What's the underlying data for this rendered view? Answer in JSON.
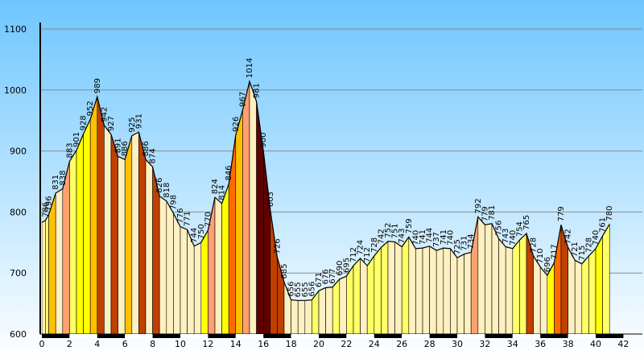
{
  "chart_data": {
    "type": "area",
    "title": "",
    "xlabel": "",
    "ylabel": "",
    "xlim": [
      0,
      43
    ],
    "ylim": [
      600,
      1100
    ],
    "x_ticks": [
      0,
      2,
      4,
      6,
      8,
      10,
      12,
      14,
      16,
      18,
      20,
      22,
      24,
      26,
      28,
      30,
      32,
      34,
      36,
      38,
      40,
      42
    ],
    "y_ticks": [
      600,
      700,
      800,
      900,
      1000,
      1100
    ],
    "grid": "horizontal",
    "colors": {
      "background_top": "#6ec6ff",
      "background_bottom": "#ffffff",
      "grid": "#8a8a8a",
      "outline": "#000000",
      "band_dark": "#000000",
      "band_light": "#ffffff",
      "gentle": "#fff0c0",
      "moderate": "#ffff66",
      "steep": "#ffff00",
      "steeper": "#ffc000",
      "very_steep": "#ffa070",
      "extreme": "#ff6a00",
      "descent": "#c04000",
      "descent_steep": "#600000"
    },
    "points": [
      {
        "x": 0.0,
        "y": 783
      },
      {
        "x": 0.25,
        "y": 786
      },
      {
        "x": 0.5,
        "y": 796
      },
      {
        "x": 1.0,
        "y": 831
      },
      {
        "x": 1.5,
        "y": 838
      },
      {
        "x": 2.0,
        "y": 883
      },
      {
        "x": 2.5,
        "y": 901
      },
      {
        "x": 3.0,
        "y": 928
      },
      {
        "x": 3.5,
        "y": 952
      },
      {
        "x": 4.0,
        "y": 989
      },
      {
        "x": 4.5,
        "y": 942
      },
      {
        "x": 5.0,
        "y": 927
      },
      {
        "x": 5.5,
        "y": 891
      },
      {
        "x": 6.0,
        "y": 886
      },
      {
        "x": 6.5,
        "y": 925
      },
      {
        "x": 7.0,
        "y": 931
      },
      {
        "x": 7.5,
        "y": 886
      },
      {
        "x": 8.0,
        "y": 874
      },
      {
        "x": 8.5,
        "y": 826
      },
      {
        "x": 9.0,
        "y": 818
      },
      {
        "x": 9.5,
        "y": 798
      },
      {
        "x": 10.0,
        "y": 776
      },
      {
        "x": 10.5,
        "y": 771
      },
      {
        "x": 11.0,
        "y": 744
      },
      {
        "x": 11.5,
        "y": 750
      },
      {
        "x": 12.0,
        "y": 770
      },
      {
        "x": 12.5,
        "y": 824
      },
      {
        "x": 13.0,
        "y": 814
      },
      {
        "x": 13.5,
        "y": 846
      },
      {
        "x": 14.0,
        "y": 926
      },
      {
        "x": 14.5,
        "y": 967
      },
      {
        "x": 15.0,
        "y": 1014
      },
      {
        "x": 15.5,
        "y": 981
      },
      {
        "x": 16.0,
        "y": 900
      },
      {
        "x": 16.5,
        "y": 803
      },
      {
        "x": 17.0,
        "y": 726
      },
      {
        "x": 17.5,
        "y": 685
      },
      {
        "x": 18.0,
        "y": 656
      },
      {
        "x": 18.5,
        "y": 655
      },
      {
        "x": 19.0,
        "y": 655
      },
      {
        "x": 19.5,
        "y": 656
      },
      {
        "x": 20.0,
        "y": 671
      },
      {
        "x": 20.5,
        "y": 676
      },
      {
        "x": 21.0,
        "y": 677
      },
      {
        "x": 21.5,
        "y": 690
      },
      {
        "x": 22.0,
        "y": 695
      },
      {
        "x": 22.5,
        "y": 712
      },
      {
        "x": 23.0,
        "y": 724
      },
      {
        "x": 23.5,
        "y": 712
      },
      {
        "x": 24.0,
        "y": 728
      },
      {
        "x": 24.5,
        "y": 742
      },
      {
        "x": 25.0,
        "y": 752
      },
      {
        "x": 25.5,
        "y": 751
      },
      {
        "x": 26.0,
        "y": 743
      },
      {
        "x": 26.5,
        "y": 759
      },
      {
        "x": 27.0,
        "y": 740
      },
      {
        "x": 27.5,
        "y": 741
      },
      {
        "x": 28.0,
        "y": 744
      },
      {
        "x": 28.5,
        "y": 737
      },
      {
        "x": 29.0,
        "y": 741
      },
      {
        "x": 29.5,
        "y": 740
      },
      {
        "x": 30.0,
        "y": 725
      },
      {
        "x": 30.5,
        "y": 731
      },
      {
        "x": 31.0,
        "y": 734
      },
      {
        "x": 31.5,
        "y": 792
      },
      {
        "x": 32.0,
        "y": 779
      },
      {
        "x": 32.5,
        "y": 781
      },
      {
        "x": 33.0,
        "y": 756
      },
      {
        "x": 33.5,
        "y": 743
      },
      {
        "x": 34.0,
        "y": 740
      },
      {
        "x": 34.5,
        "y": 754
      },
      {
        "x": 35.0,
        "y": 765
      },
      {
        "x": 35.5,
        "y": 728
      },
      {
        "x": 36.0,
        "y": 710
      },
      {
        "x": 36.5,
        "y": 696
      },
      {
        "x": 37.0,
        "y": 717
      },
      {
        "x": 37.5,
        "y": 779
      },
      {
        "x": 38.0,
        "y": 742
      },
      {
        "x": 38.5,
        "y": 721
      },
      {
        "x": 39.0,
        "y": 715
      },
      {
        "x": 39.5,
        "y": 728
      },
      {
        "x": 40.0,
        "y": 740
      },
      {
        "x": 40.5,
        "y": 761
      },
      {
        "x": 41.0,
        "y": 780
      }
    ]
  }
}
